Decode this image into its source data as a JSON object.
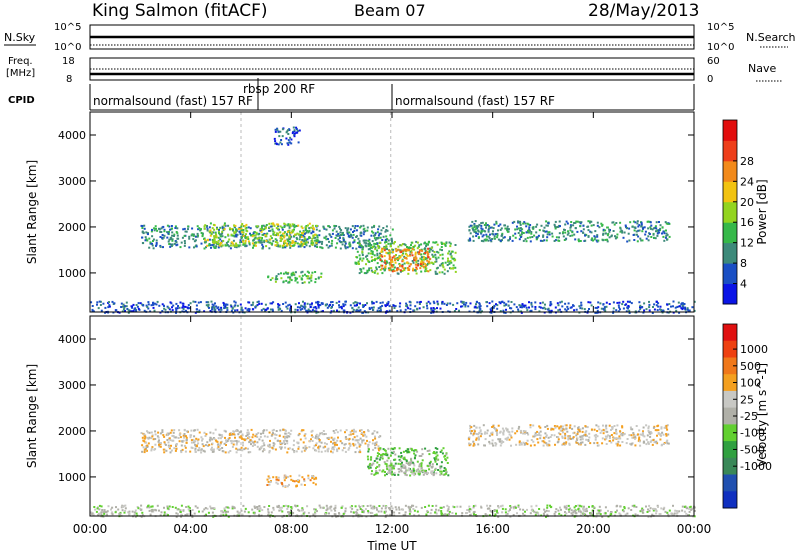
{
  "header": {
    "station": "King Salmon (fitACF)",
    "beam": "Beam 07",
    "date": "28/May/2013"
  },
  "top_panels": {
    "nsky_label": "N.Sky",
    "nsky_ticks": [
      "10^5",
      "10^0"
    ],
    "nsearch_label": "N.Search",
    "nsearch_ticks": [
      "10^5",
      "10^0"
    ],
    "freq_label_1": "Freq.",
    "freq_label_2": "[MHz]",
    "freq_ticks": [
      "18",
      "8"
    ],
    "nave_label": "Nave",
    "nave_ticks": [
      "60",
      "0"
    ],
    "cpid_label": "CPID",
    "cpid_segments": [
      {
        "label": "normalsound (fast) 157 RF",
        "start_hour": 0
      },
      {
        "label": "rbsp 200 RF",
        "start_hour": 6.9
      },
      {
        "label": "normalsound (fast) 157 RF",
        "start_hour": 12
      }
    ]
  },
  "chart_data": [
    {
      "type": "heatmap",
      "name": "power",
      "ylabel": "Slant Range [km]",
      "xlabel": "",
      "xlim": [
        0,
        24
      ],
      "ylim": [
        150,
        4500
      ],
      "y_ticks": [
        1000,
        2000,
        3000,
        4000
      ],
      "colorbar_label": "Power [dB]",
      "colorbar_ticks": [
        "4",
        "8",
        "12",
        "16",
        "20",
        "24",
        "28"
      ],
      "colorbar_colors": [
        "#0a14e6",
        "#1a4fc4",
        "#3d8a7a",
        "#36b849",
        "#93d41f",
        "#f2c311",
        "#f28a1b",
        "#ee3e1a",
        "#e20d0d"
      ],
      "regions": [
        {
          "x": [
            2,
            12
          ],
          "y": [
            1550,
            2050
          ],
          "level": 2
        },
        {
          "x": [
            4.5,
            9
          ],
          "y": [
            1600,
            2100
          ],
          "level": 4
        },
        {
          "x": [
            7,
            9.2
          ],
          "y": [
            800,
            1050
          ],
          "level": 3
        },
        {
          "x": [
            7.3,
            8.3
          ],
          "y": [
            3800,
            4200
          ],
          "level": 1
        },
        {
          "x": [
            10.5,
            14.5
          ],
          "y": [
            1000,
            1700
          ],
          "level": 3
        },
        {
          "x": [
            11.5,
            13.5
          ],
          "y": [
            1050,
            1550
          ],
          "level": 6
        },
        {
          "x": [
            15,
            23
          ],
          "y": [
            1700,
            2150
          ],
          "level": 2
        },
        {
          "x": [
            0,
            24
          ],
          "y": [
            150,
            400
          ],
          "level": 1
        }
      ]
    },
    {
      "type": "heatmap",
      "name": "velocity",
      "ylabel": "Slant Range [km]",
      "xlabel": "Time UT",
      "xlim": [
        0,
        24
      ],
      "x_ticks": [
        "00:00",
        "04:00",
        "08:00",
        "12:00",
        "16:00",
        "20:00",
        "00:00"
      ],
      "ylim": [
        150,
        4500
      ],
      "y_ticks": [
        1000,
        2000,
        3000,
        4000
      ],
      "colorbar_label": "Velocity [m s^-1]",
      "colorbar_ticks": [
        "1000",
        "500",
        "100",
        "25",
        "-25",
        "-100",
        "-500",
        "-1000"
      ],
      "colorbar_colors": [
        "#e01010",
        "#ee4010",
        "#f0781a",
        "#f4a020",
        "#c8c8c4",
        "#b0b0a8",
        "#62d030",
        "#30a040",
        "#3a8858",
        "#2050b0",
        "#1030c0"
      ],
      "regions": [
        {
          "x": [
            2,
            11.5
          ],
          "y": [
            1550,
            2050
          ],
          "level": "-25"
        },
        {
          "x": [
            7,
            9
          ],
          "y": [
            800,
            1050
          ],
          "level": "-100"
        },
        {
          "x": [
            11,
            14.2
          ],
          "y": [
            1050,
            1650
          ],
          "level": "100"
        },
        {
          "x": [
            11.8,
            13.8
          ],
          "y": [
            1050,
            1300
          ],
          "level": "25"
        },
        {
          "x": [
            15,
            23
          ],
          "y": [
            1700,
            2150
          ],
          "level": "-25"
        },
        {
          "x": [
            0,
            24
          ],
          "y": [
            150,
            400
          ],
          "level": "25"
        }
      ]
    }
  ]
}
